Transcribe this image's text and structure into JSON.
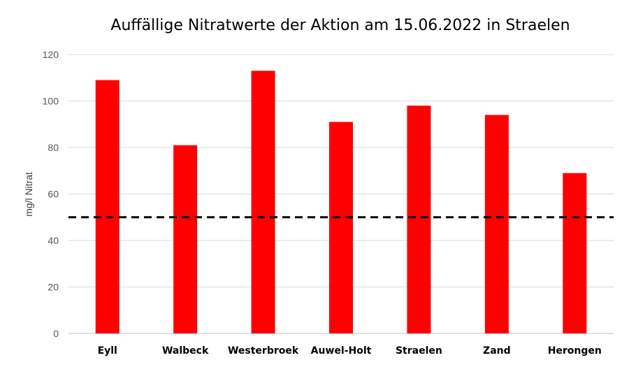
{
  "chart_data": {
    "type": "bar",
    "title": "Auffällige Nitratwerte der Aktion am 15.06.2022 in Straelen",
    "xlabel": "",
    "ylabel": "mg/l Nitrat",
    "categories": [
      "Eyll",
      "Walbeck",
      "Westerbroek",
      "Auwel-Holt",
      "Straelen",
      "Zand",
      "Herongen"
    ],
    "values": [
      109,
      81,
      113,
      91,
      98,
      94,
      69
    ],
    "ylim": [
      0,
      120
    ],
    "yticks": [
      "0",
      "20",
      "40",
      "60",
      "80",
      "100",
      "120"
    ],
    "grid": true,
    "legend": "none",
    "bar_color": "#ff0000",
    "reference_line": {
      "value": 50,
      "style": "dashed",
      "color": "#000000"
    }
  }
}
